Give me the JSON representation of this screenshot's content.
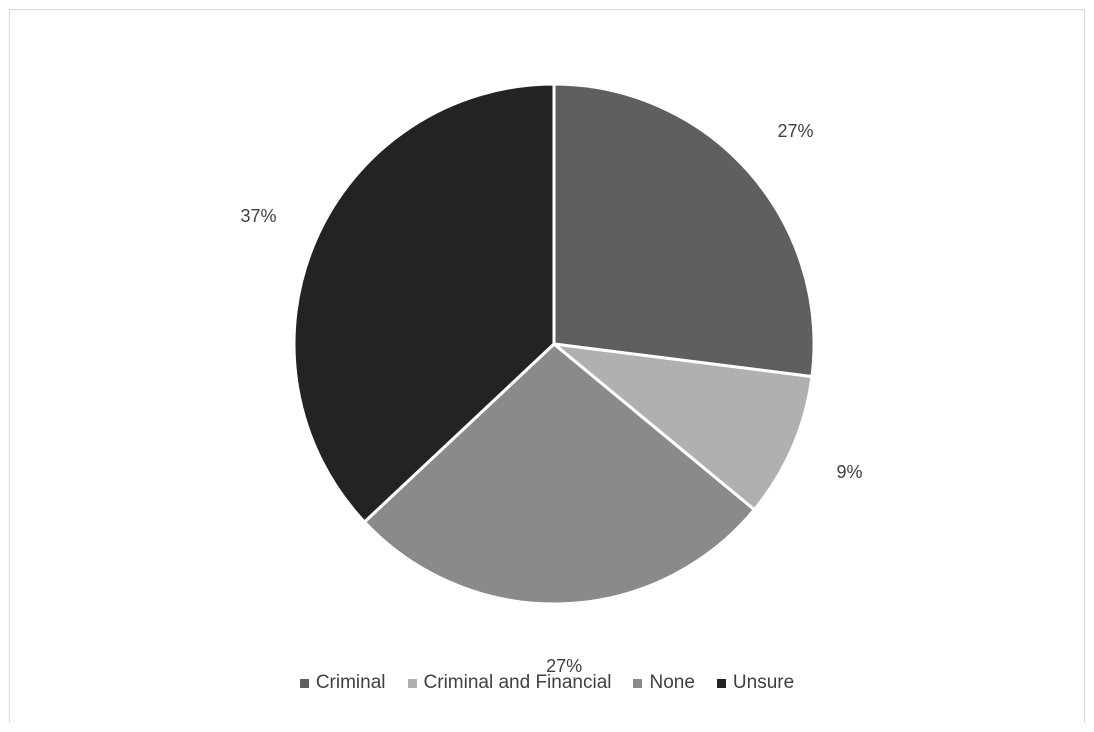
{
  "chart_data": {
    "type": "pie",
    "title": "",
    "legend_position": "bottom",
    "categories": [
      "Criminal",
      "Criminal and Financial",
      "None",
      "Unsure"
    ],
    "values": [
      27,
      9,
      27,
      37
    ],
    "labels": [
      "27%",
      "9%",
      "27%",
      "37%"
    ],
    "colors": [
      "#5f5f5f",
      "#b0b0b0",
      "#8a8a8a",
      "#232323"
    ]
  }
}
